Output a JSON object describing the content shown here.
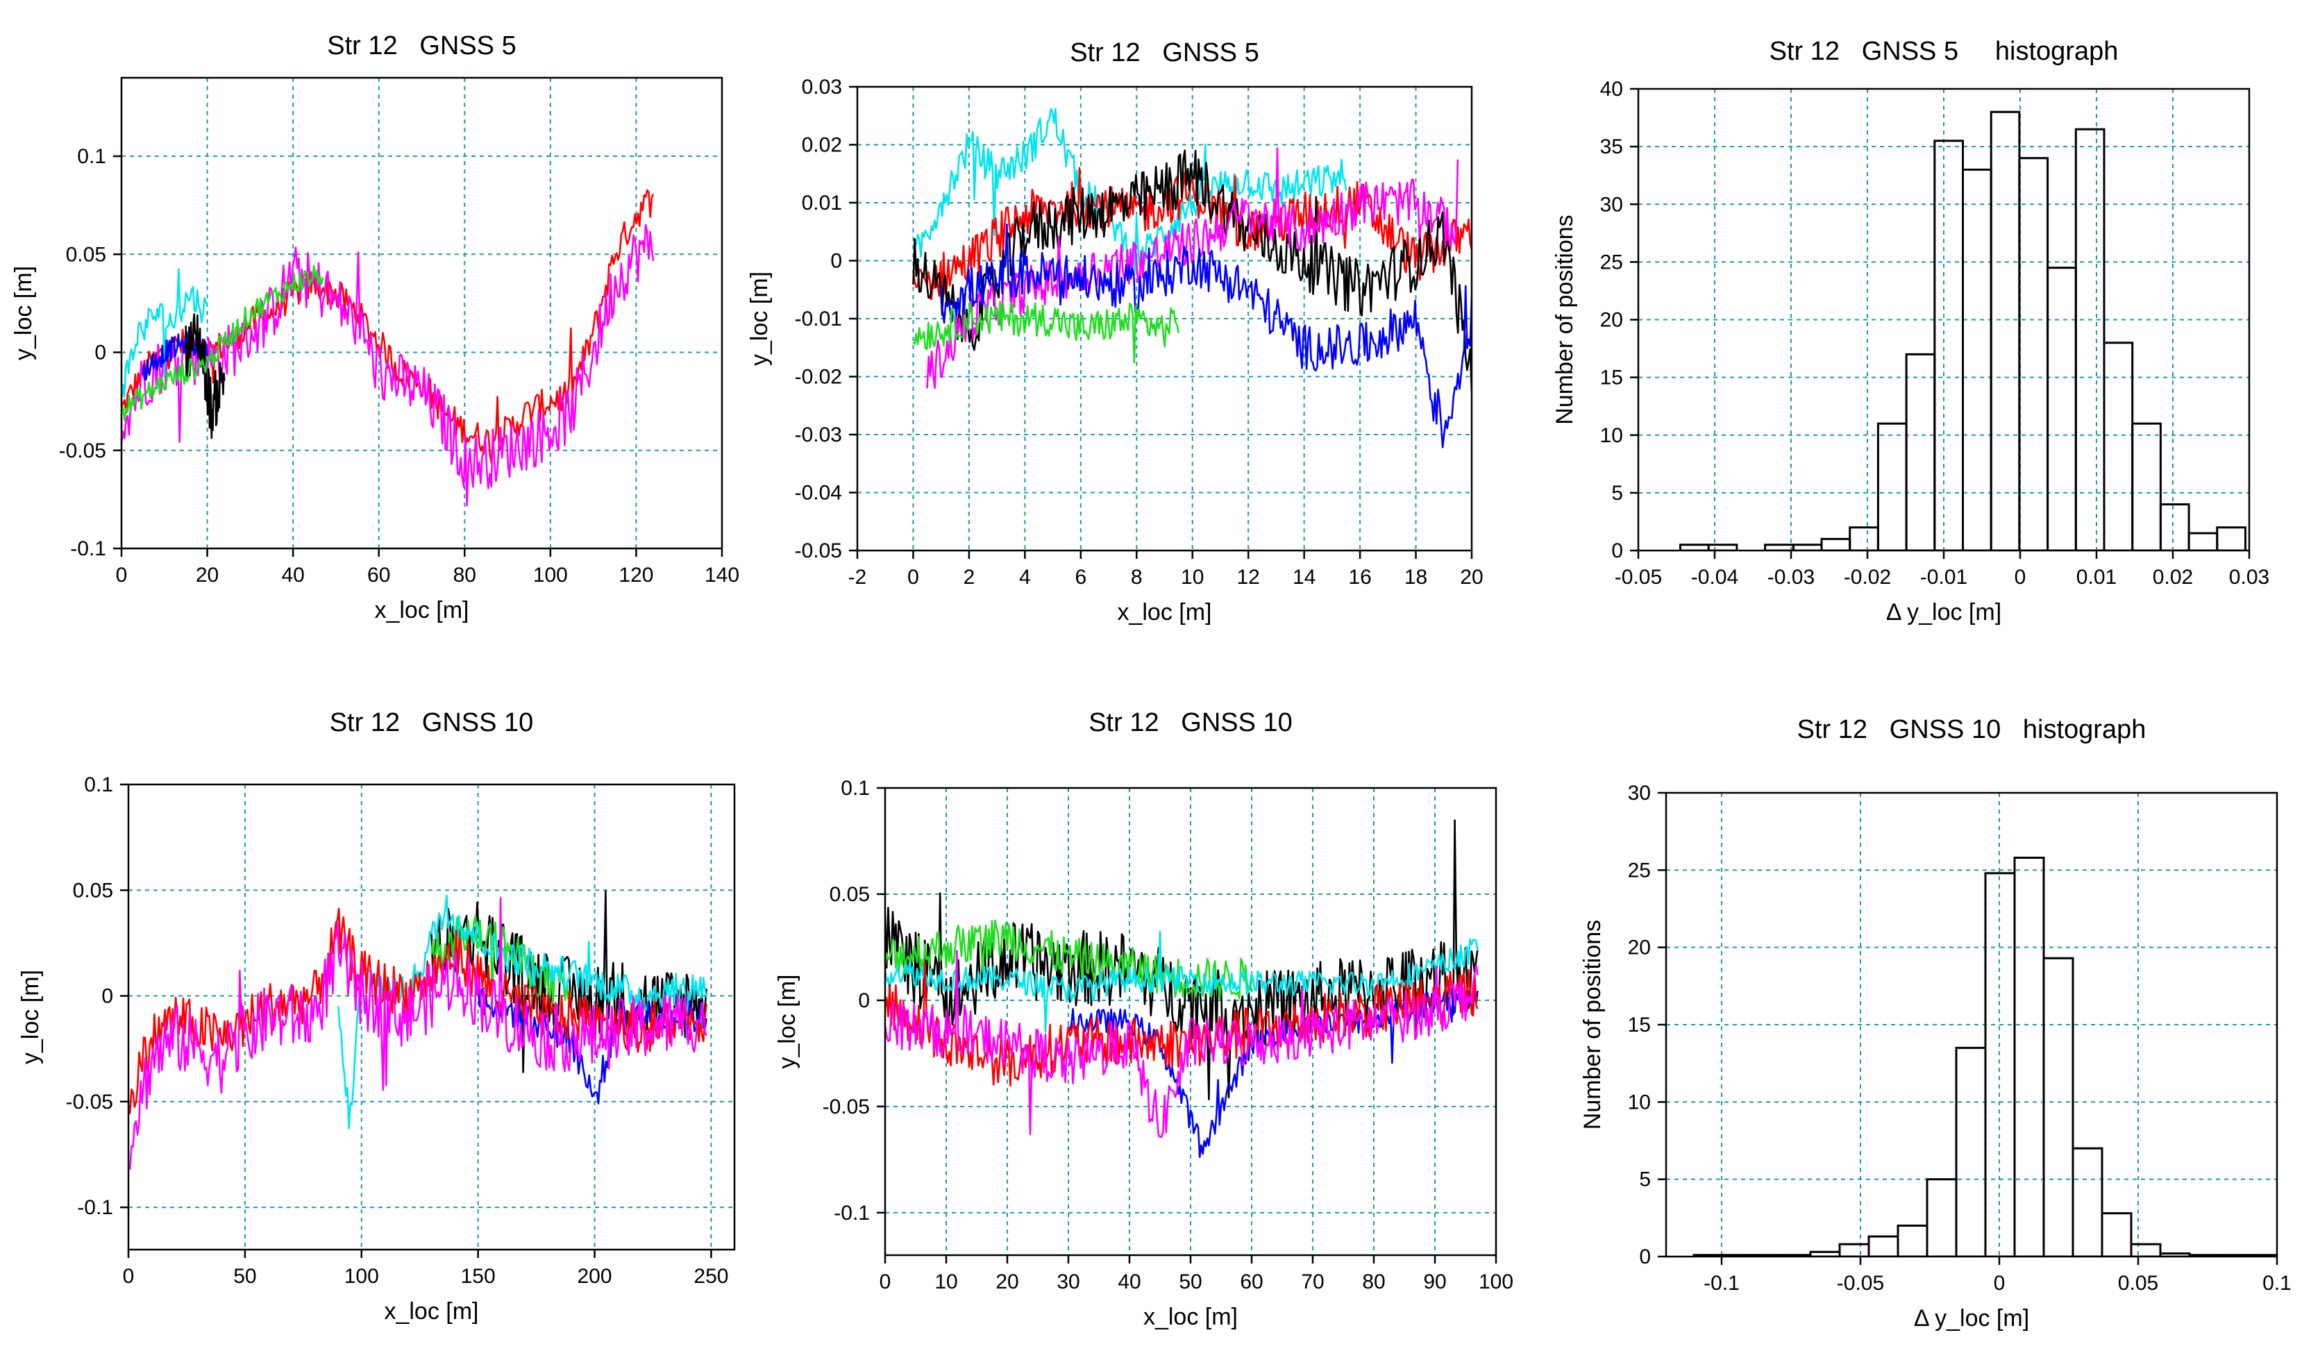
{
  "colors": {
    "black": "#000000",
    "red": "#ff0000",
    "green": "#22dd22",
    "blue": "#0000ff",
    "cyan": "#00e5ee",
    "magenta": "#ff00ff",
    "grid": "#1a9bb0"
  },
  "chart_data": [
    {
      "id": "p1",
      "type": "line",
      "title": "Str 12   GNSS 5",
      "xlabel": "x_loc [m]",
      "ylabel": "y_loc [m]",
      "xlim": [
        0,
        140
      ],
      "ylim": [
        -0.1,
        0.14
      ],
      "xticks": [
        0,
        20,
        40,
        60,
        80,
        100,
        120,
        140
      ],
      "yticks": [
        -0.1,
        -0.05,
        0,
        0.05,
        0.1
      ],
      "xtick_labels": [
        "0",
        "20",
        "40",
        "60",
        "80",
        "100",
        "120",
        "140"
      ],
      "ytick_labels": [
        "-0.1",
        "-0.05",
        "0",
        "0.05",
        "0.1"
      ],
      "grid": true,
      "series": [
        {
          "name": "red",
          "color": "red",
          "x": [
            0,
            5,
            10,
            15,
            20,
            25,
            30,
            35,
            40,
            45,
            50,
            55,
            60,
            65,
            70,
            75,
            80,
            85,
            90,
            95,
            100,
            105,
            110,
            115,
            120,
            124
          ],
          "y": [
            -0.03,
            -0.01,
            0.0,
            0.005,
            0.0,
            0.005,
            0.015,
            0.02,
            0.03,
            0.035,
            0.03,
            0.02,
            0.005,
            -0.01,
            -0.015,
            -0.03,
            -0.04,
            -0.045,
            -0.04,
            -0.03,
            -0.025,
            -0.02,
            0.01,
            0.05,
            0.07,
            0.08
          ],
          "noise": 0.008
        },
        {
          "name": "magenta",
          "color": "magenta",
          "x": [
            0,
            5,
            10,
            15,
            20,
            25,
            30,
            35,
            40,
            45,
            50,
            55,
            60,
            65,
            70,
            75,
            80,
            85,
            90,
            95,
            100,
            105,
            110,
            115,
            120,
            124
          ],
          "y": [
            -0.035,
            -0.015,
            -0.005,
            0.0,
            -0.005,
            0.0,
            0.01,
            0.02,
            0.04,
            0.035,
            0.025,
            0.015,
            -0.01,
            -0.015,
            -0.02,
            -0.035,
            -0.055,
            -0.055,
            -0.05,
            -0.045,
            -0.04,
            -0.03,
            0.0,
            0.035,
            0.05,
            0.055
          ],
          "noise": 0.015
        },
        {
          "name": "cyan",
          "color": "cyan",
          "x": [
            0,
            4,
            8,
            12,
            16,
            20
          ],
          "y": [
            -0.02,
            0.01,
            0.02,
            0.015,
            0.03,
            0.02
          ],
          "noise": 0.008
        },
        {
          "name": "blue",
          "color": "blue",
          "x": [
            5,
            10,
            15,
            20
          ],
          "y": [
            -0.01,
            0.0,
            0.005,
            0.0
          ],
          "noise": 0.006
        },
        {
          "name": "black",
          "color": "black",
          "x": [
            15,
            18,
            21,
            24
          ],
          "y": [
            0.0,
            0.01,
            -0.03,
            -0.01
          ],
          "noise": 0.015
        },
        {
          "name": "green",
          "color": "green",
          "x": [
            0,
            10,
            20,
            30,
            40,
            47
          ],
          "y": [
            -0.03,
            -0.015,
            -0.005,
            0.02,
            0.035,
            0.04
          ],
          "noise": 0.006
        }
      ]
    },
    {
      "id": "p2",
      "type": "line",
      "title": "Str 12   GNSS 5",
      "xlabel": "x_loc [m]",
      "ylabel": "y_loc [m]",
      "xlim": [
        -2,
        20
      ],
      "ylim": [
        -0.05,
        0.03
      ],
      "xticks": [
        -2,
        0,
        2,
        4,
        6,
        8,
        10,
        12,
        14,
        16,
        18,
        20
      ],
      "yticks": [
        -0.05,
        -0.04,
        -0.03,
        -0.02,
        -0.01,
        0,
        0.01,
        0.02,
        0.03
      ],
      "xtick_labels": [
        "-2",
        "0",
        "2",
        "4",
        "6",
        "8",
        "10",
        "12",
        "14",
        "16",
        "18",
        "20"
      ],
      "ytick_labels": [
        "-0.05",
        "-0.04",
        "-0.03",
        "-0.02",
        "-0.01",
        "0",
        "0.01",
        "0.02",
        "0.03"
      ],
      "grid": true,
      "series": [
        {
          "name": "cyan",
          "color": "cyan",
          "x": [
            0,
            1,
            2,
            3,
            4,
            5,
            6,
            7,
            8,
            9,
            10,
            11,
            12,
            13,
            14,
            15,
            15.5
          ],
          "y": [
            0.0,
            0.01,
            0.02,
            0.015,
            0.018,
            0.025,
            0.012,
            0.008,
            0.0,
            0.005,
            0.01,
            0.013,
            0.014,
            0.012,
            0.013,
            0.014,
            0.015
          ],
          "noise": 0.003
        },
        {
          "name": "red",
          "color": "red",
          "x": [
            0,
            2,
            4,
            6,
            8,
            10,
            12,
            14,
            16,
            18,
            20
          ],
          "y": [
            -0.005,
            0.0,
            0.008,
            0.01,
            0.008,
            0.012,
            0.005,
            0.008,
            0.01,
            0.0,
            0.005
          ],
          "noise": 0.004
        },
        {
          "name": "black",
          "color": "black",
          "x": [
            0,
            2,
            4,
            6,
            8,
            10,
            12,
            14,
            16,
            18,
            19,
            20
          ],
          "y": [
            0.0,
            -0.012,
            0.005,
            0.008,
            0.01,
            0.015,
            0.005,
            0.0,
            -0.005,
            0.0,
            0.005,
            -0.02
          ],
          "noise": 0.005
        },
        {
          "name": "magenta",
          "color": "magenta",
          "x": [
            0.5,
            2,
            4,
            6,
            8,
            10,
            12,
            14,
            16,
            18,
            19.5
          ],
          "y": [
            -0.02,
            -0.01,
            -0.005,
            -0.002,
            0.0,
            0.003,
            0.008,
            0.005,
            0.01,
            0.01,
            0.005
          ],
          "noise": 0.004
        },
        {
          "name": "blue",
          "color": "blue",
          "x": [
            1,
            2,
            4,
            6,
            8,
            10,
            12,
            14,
            16,
            18,
            19,
            20
          ],
          "y": [
            -0.008,
            -0.005,
            -0.002,
            -0.003,
            -0.005,
            0.0,
            -0.005,
            -0.015,
            -0.015,
            -0.01,
            -0.03,
            -0.01
          ],
          "noise": 0.004
        },
        {
          "name": "green",
          "color": "green",
          "x": [
            0,
            1,
            2,
            3,
            4,
            5,
            6,
            7,
            8,
            9,
            9.5
          ],
          "y": [
            -0.013,
            -0.012,
            -0.01,
            -0.01,
            -0.01,
            -0.01,
            -0.012,
            -0.011,
            -0.01,
            -0.012,
            -0.01
          ],
          "noise": 0.003
        }
      ]
    },
    {
      "id": "p3",
      "type": "bar",
      "title": "Str 12   GNSS 5     histograph",
      "xlabel": "Δ y_loc [m]",
      "ylabel": "Number of positions",
      "xlim": [
        -0.05,
        0.03
      ],
      "ylim": [
        0,
        40
      ],
      "xticks": [
        -0.05,
        -0.04,
        -0.03,
        -0.02,
        -0.01,
        0,
        0.01,
        0.02,
        0.03
      ],
      "yticks": [
        0,
        5,
        10,
        15,
        20,
        25,
        30,
        35,
        40
      ],
      "xtick_labels": [
        "-0.05",
        "-0.04",
        "-0.03",
        "-0.02",
        "-0.01",
        "0",
        "0.01",
        "0.02",
        "0.03"
      ],
      "ytick_labels": [
        "0",
        "5",
        "10",
        "15",
        "20",
        "25",
        "30",
        "35",
        "40"
      ],
      "grid": true,
      "bin_start": -0.0445,
      "bin_width": 0.0037,
      "values": [
        0.5,
        0.5,
        0,
        0.5,
        0.5,
        1,
        2,
        11,
        17,
        35.5,
        33,
        38,
        34,
        24.5,
        36.5,
        18,
        11,
        4,
        1.5,
        2
      ]
    },
    {
      "id": "p4",
      "type": "line",
      "title": "Str 12   GNSS 10",
      "xlabel": "x_loc [m]",
      "ylabel": "y_loc [m]",
      "xlim": [
        0,
        260
      ],
      "ylim": [
        -0.12,
        0.1
      ],
      "xticks": [
        0,
        50,
        100,
        150,
        200,
        250
      ],
      "yticks": [
        -0.1,
        -0.05,
        0,
        0.05,
        0.1
      ],
      "xtick_labels": [
        "0",
        "50",
        "100",
        "150",
        "200",
        "250"
      ],
      "ytick_labels": [
        "-0.1",
        "-0.05",
        "0",
        "0.05",
        "0.1"
      ],
      "grid": true,
      "series": [
        {
          "name": "black",
          "color": "black",
          "x": [
            130,
            150,
            170,
            190,
            210,
            230,
            248
          ],
          "y": [
            0.02,
            0.03,
            0.01,
            0.0,
            0.0,
            -0.005,
            0.0
          ],
          "noise": 0.018
        },
        {
          "name": "green",
          "color": "green",
          "x": [
            130,
            145,
            160,
            175,
            190
          ],
          "y": [
            0.02,
            0.03,
            0.025,
            0.01,
            0.0
          ],
          "noise": 0.01
        },
        {
          "name": "cyan",
          "color": "cyan",
          "x": [
            90,
            95,
            100,
            120,
            135,
            160,
            190,
            220,
            248
          ],
          "y": [
            -0.01,
            -0.06,
            0.01,
            0.0,
            0.04,
            0.02,
            0.01,
            0.0,
            0.005
          ],
          "noise": 0.008
        },
        {
          "name": "blue",
          "color": "blue",
          "x": [
            150,
            170,
            190,
            200,
            210,
            230,
            248
          ],
          "y": [
            0.0,
            -0.01,
            -0.02,
            -0.05,
            -0.01,
            -0.01,
            -0.01
          ],
          "noise": 0.008
        },
        {
          "name": "red",
          "color": "red",
          "x": [
            0,
            10,
            20,
            40,
            60,
            80,
            90,
            100,
            120,
            140,
            160,
            180,
            200,
            220,
            248
          ],
          "y": [
            -0.05,
            -0.02,
            -0.01,
            -0.02,
            -0.005,
            0.0,
            0.03,
            0.01,
            0.0,
            0.02,
            0.0,
            -0.01,
            -0.01,
            -0.015,
            -0.01
          ],
          "noise": 0.012
        },
        {
          "name": "magenta",
          "color": "magenta",
          "x": [
            0,
            10,
            20,
            40,
            60,
            80,
            90,
            100,
            120,
            140,
            160,
            180,
            200,
            220,
            248
          ],
          "y": [
            -0.07,
            -0.03,
            -0.02,
            -0.03,
            -0.01,
            -0.01,
            0.02,
            0.0,
            -0.01,
            0.01,
            -0.01,
            -0.02,
            -0.02,
            -0.015,
            -0.01
          ],
          "noise": 0.016
        }
      ]
    },
    {
      "id": "p5",
      "type": "line",
      "title": "Str 12   GNSS 10",
      "xlabel": "x_loc [m]",
      "ylabel": "y_loc [m]",
      "xlim": [
        0,
        100
      ],
      "ylim": [
        -0.12,
        0.1
      ],
      "xticks": [
        0,
        10,
        20,
        30,
        40,
        50,
        60,
        70,
        80,
        90,
        100
      ],
      "yticks": [
        -0.1,
        -0.05,
        0,
        0.05,
        0.1
      ],
      "xtick_labels": [
        "0",
        "10",
        "20",
        "30",
        "40",
        "50",
        "60",
        "70",
        "80",
        "90",
        "100"
      ],
      "ytick_labels": [
        "-0.1",
        "-0.05",
        "0",
        "0.05",
        "0.1"
      ],
      "grid": true,
      "series": [
        {
          "name": "black",
          "color": "black",
          "x": [
            0,
            10,
            20,
            30,
            40,
            50,
            60,
            70,
            80,
            90,
            97
          ],
          "y": [
            0.03,
            0.0,
            0.02,
            0.015,
            0.015,
            0.0,
            -0.005,
            0.0,
            0.005,
            0.01,
            0.01
          ],
          "noise": 0.018
        },
        {
          "name": "green",
          "color": "green",
          "x": [
            0,
            10,
            20,
            30,
            40,
            50,
            60
          ],
          "y": [
            0.02,
            0.025,
            0.03,
            0.02,
            0.015,
            0.01,
            0.01
          ],
          "noise": 0.01
        },
        {
          "name": "cyan",
          "color": "cyan",
          "x": [
            0,
            10,
            20,
            30,
            40,
            50,
            60,
            70,
            80,
            90,
            97
          ],
          "y": [
            0.015,
            0.01,
            0.01,
            0.005,
            0.01,
            0.01,
            0.008,
            0.008,
            0.008,
            0.015,
            0.025
          ],
          "noise": 0.006
        },
        {
          "name": "blue",
          "color": "blue",
          "x": [
            30,
            40,
            45,
            52,
            60,
            70,
            80,
            90,
            97
          ],
          "y": [
            -0.01,
            -0.01,
            -0.02,
            -0.07,
            -0.02,
            -0.01,
            -0.01,
            0.0,
            0.0
          ],
          "noise": 0.006
        },
        {
          "name": "red",
          "color": "red",
          "x": [
            0,
            10,
            20,
            30,
            40,
            50,
            60,
            70,
            80,
            90,
            97
          ],
          "y": [
            0.0,
            -0.02,
            -0.03,
            -0.02,
            -0.02,
            -0.02,
            -0.015,
            -0.01,
            -0.005,
            0.0,
            0.005
          ],
          "noise": 0.012
        },
        {
          "name": "magenta",
          "color": "magenta",
          "x": [
            0,
            10,
            20,
            30,
            40,
            45,
            50,
            60,
            70,
            80,
            90,
            97
          ],
          "y": [
            -0.01,
            -0.015,
            -0.02,
            -0.03,
            -0.02,
            -0.06,
            -0.02,
            -0.02,
            -0.015,
            -0.01,
            -0.005,
            0.005
          ],
          "noise": 0.012
        }
      ]
    },
    {
      "id": "p6",
      "type": "bar",
      "title": "Str 12   GNSS 10   histograph",
      "xlabel": "Δ y_loc [m]",
      "ylabel": "Number of positions",
      "xlim": [
        -0.12,
        0.1
      ],
      "ylim": [
        0,
        30
      ],
      "xticks": [
        -0.1,
        -0.05,
        0,
        0.05,
        0.1
      ],
      "yticks": [
        0,
        5,
        10,
        15,
        20,
        25,
        30
      ],
      "xtick_labels": [
        "-0.1",
        "-0.05",
        "0",
        "0.05",
        "0.1"
      ],
      "ytick_labels": [
        "0",
        "5",
        "10",
        "15",
        "20",
        "25",
        "30"
      ],
      "grid": true,
      "bin_start": -0.11,
      "bin_width": 0.0105,
      "values": [
        0.1,
        0.1,
        0.1,
        0.1,
        0.3,
        0.8,
        1.3,
        2,
        5,
        13.5,
        24.8,
        25.8,
        19.3,
        7,
        2.8,
        0.8,
        0.2,
        0.1,
        0.1,
        0.1
      ]
    }
  ]
}
